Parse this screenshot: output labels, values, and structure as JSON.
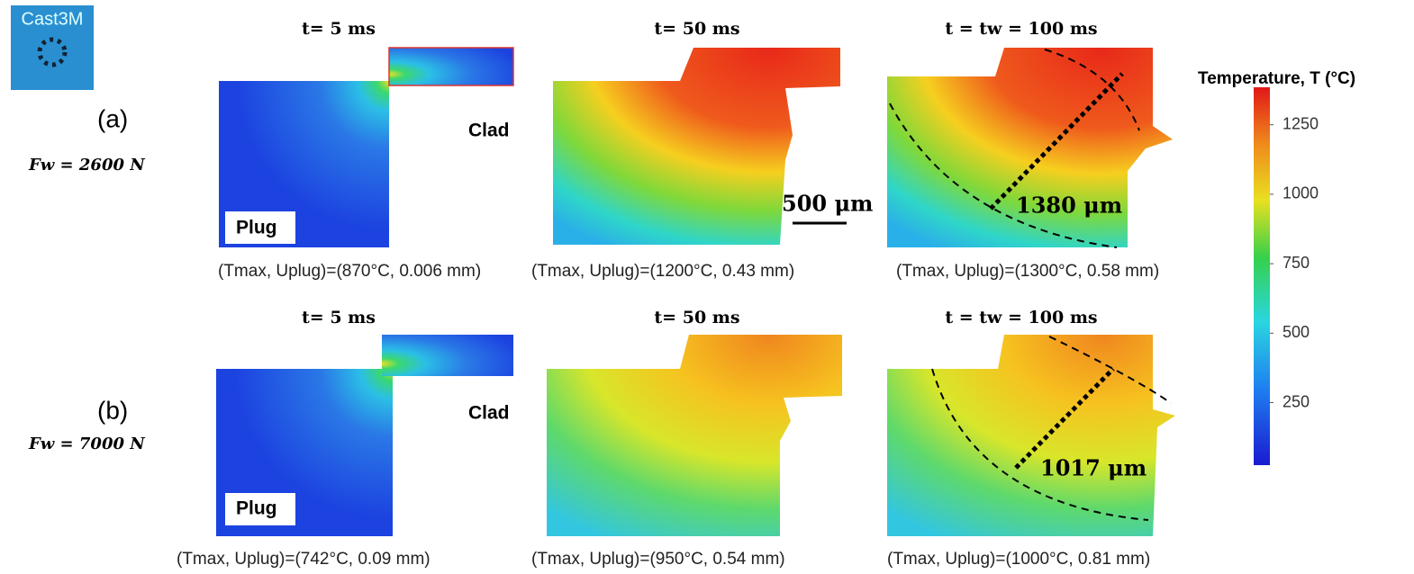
{
  "logo": "Cast3M",
  "colorbar": {
    "title": "Temperature, T (°C)",
    "lim": [
      25,
      1385
    ],
    "ticks": [
      250,
      500,
      750,
      1000,
      1250
    ]
  },
  "rows": [
    {
      "label": "(a)",
      "force": "Fw = 2600 N",
      "panels": [
        {
          "title": "t= 5 ms",
          "caption": "(Tmax, Uplug)=(870°C, 0.006 mm)",
          "clad": "Clad",
          "plug": "Plug"
        },
        {
          "title": "t= 50 ms",
          "caption": "(Tmax, Uplug)=(1200°C, 0.43 mm)",
          "scale_bar": "500 μm"
        },
        {
          "title": "t = tw = 100 ms",
          "caption": "(Tmax, Uplug)=(1300°C, 0.58 mm)",
          "dimension": "1380 μm"
        }
      ]
    },
    {
      "label": "(b)",
      "force": "Fw = 7000 N",
      "panels": [
        {
          "title": "t= 5 ms",
          "caption": "(Tmax, Uplug)=(742°C, 0.09 mm)",
          "clad": "Clad",
          "plug": "Plug"
        },
        {
          "title": "t= 50 ms",
          "caption": "(Tmax, Uplug)=(950°C, 0.54 mm)"
        },
        {
          "title": "t = tw = 100 ms",
          "caption": "(Tmax, Uplug)=(1000°C, 0.81 mm)",
          "dimension": "1017 μm"
        }
      ]
    }
  ]
}
